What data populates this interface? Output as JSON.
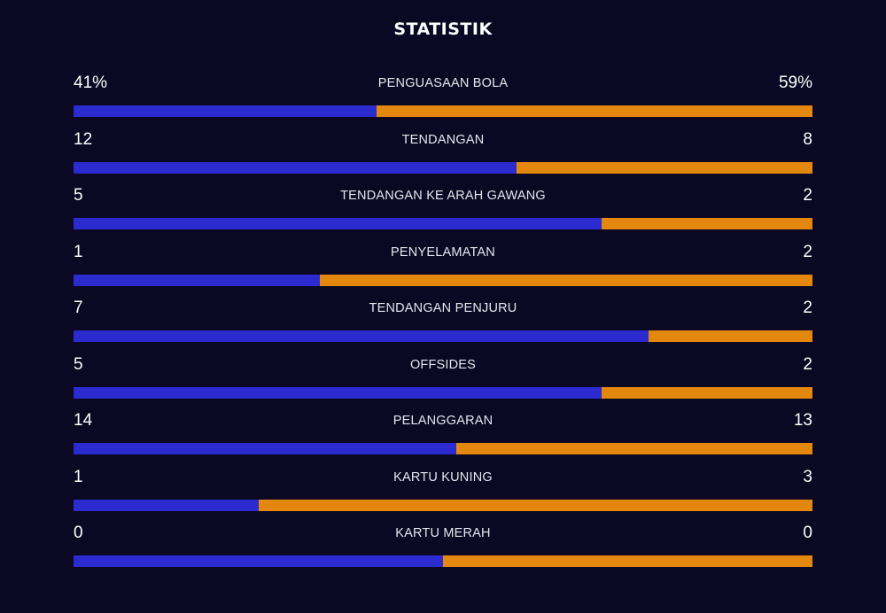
{
  "title": "STATISTIK",
  "colors": {
    "background": "#0a0822",
    "home": "#2b2bd0",
    "away": "#e3870f"
  },
  "chart_data": {
    "type": "bar",
    "orientation": "horizontal-split",
    "title": "STATISTIK",
    "categories": [
      "PENGUASAAN BOLA",
      "TENDANGAN",
      "TENDANGAN KE ARAH GAWANG",
      "PENYELAMATAN",
      "TENDANGAN PENJURU",
      "OFFSIDES",
      "PELANGGARAN",
      "KARTU KUNING",
      "KARTU MERAH"
    ],
    "left_labels": [
      "41%",
      "12",
      "5",
      "1",
      "7",
      "5",
      "14",
      "1",
      "0"
    ],
    "right_labels": [
      "59%",
      "8",
      "2",
      "2",
      "2",
      "2",
      "13",
      "3",
      "0"
    ],
    "series": [
      {
        "values": [
          41,
          12,
          5,
          1,
          7,
          5,
          14,
          1,
          0
        ]
      },
      {
        "values": [
          59,
          8,
          2,
          2,
          2,
          2,
          13,
          3,
          0
        ]
      }
    ]
  }
}
